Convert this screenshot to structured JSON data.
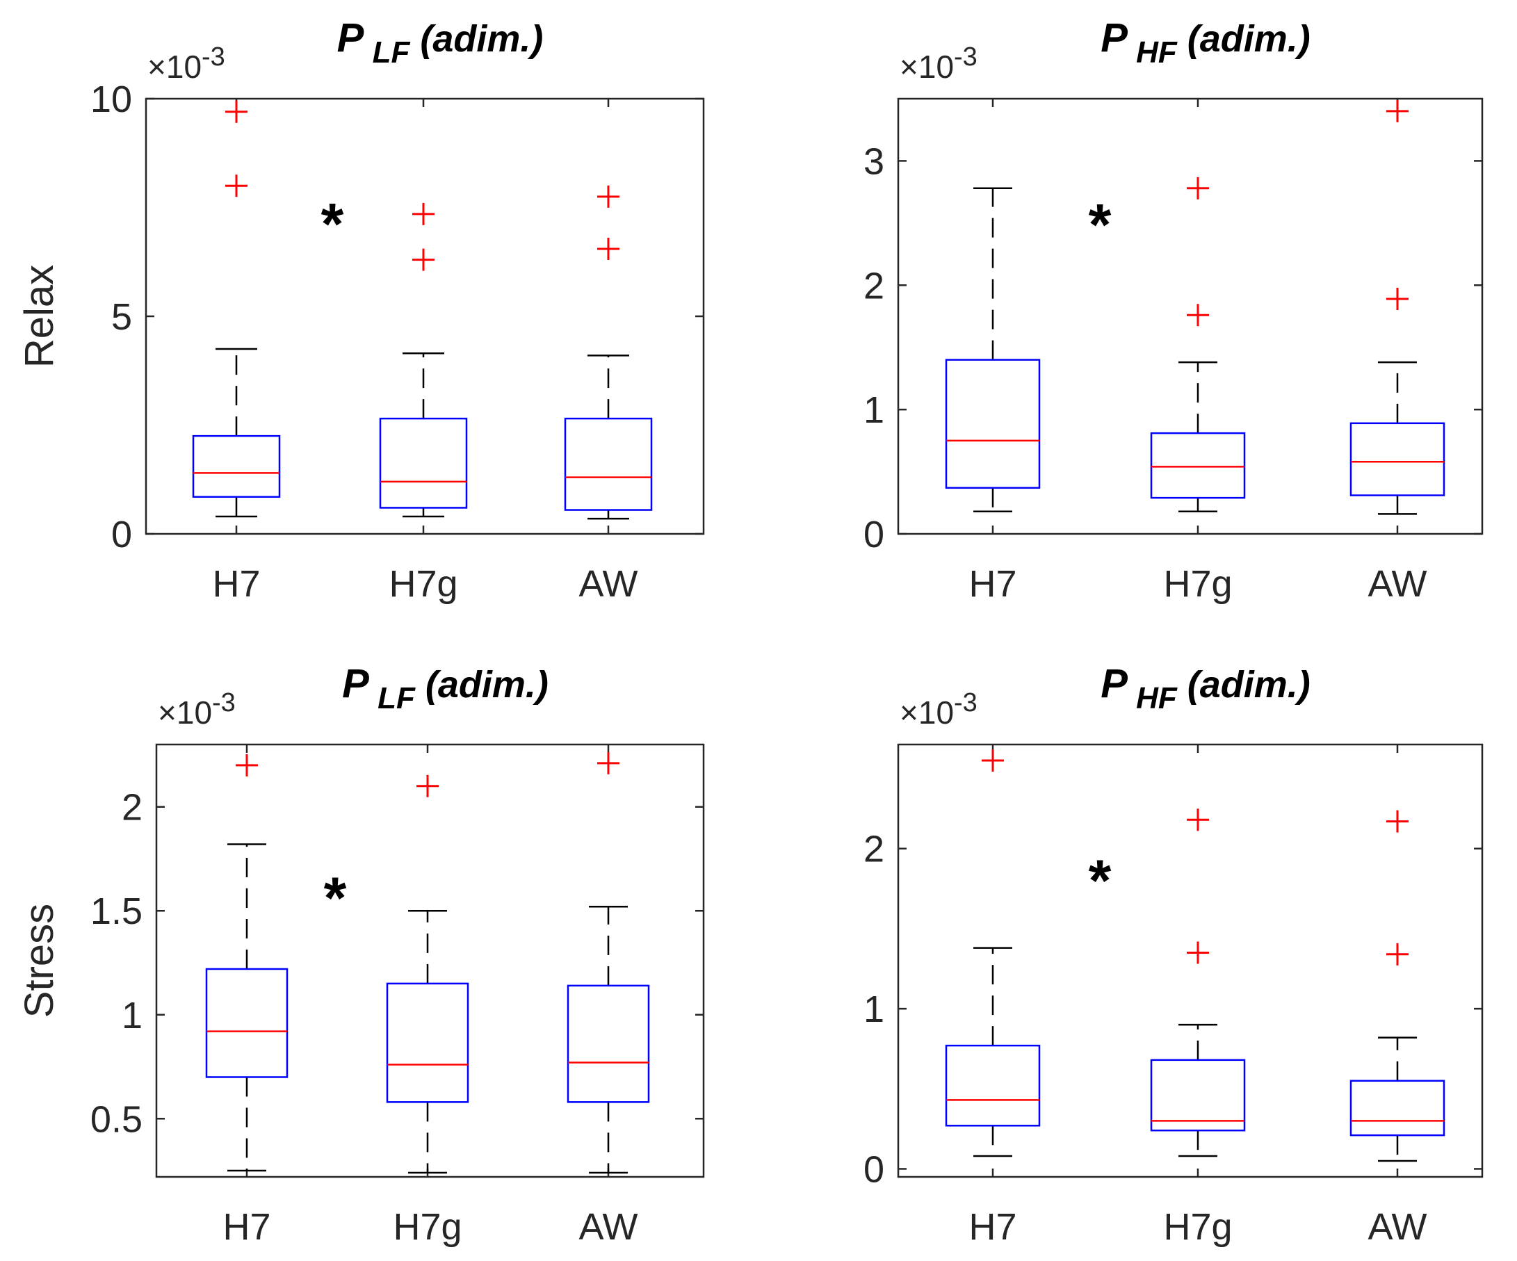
{
  "colors": {
    "box": "#0000ff",
    "median": "#ff0000",
    "outlier": "#ff0000",
    "whisker": "#000000",
    "axis": "#262626"
  },
  "chart_data": [
    {
      "type": "box",
      "title": {
        "symbol": "P",
        "subscript": "LF",
        "unit": "(adim.)"
      },
      "ylabel": "Relax",
      "exponent": {
        "times": "×",
        "base": "10",
        "power": "-3"
      },
      "categories": [
        "H7",
        "H7g",
        "AW"
      ],
      "ylim": [
        0,
        10
      ],
      "yticks": [
        0,
        5,
        10
      ],
      "ytick_labels": [
        "0",
        "5",
        "10"
      ],
      "significance_marker": "*",
      "significance_value": 7.3,
      "boxes": [
        {
          "whisker_low": 0.4,
          "q1": 0.85,
          "median": 1.4,
          "q3": 2.25,
          "whisker_high": 4.25,
          "outliers": [
            8.0,
            9.7
          ]
        },
        {
          "whisker_low": 0.4,
          "q1": 0.6,
          "median": 1.2,
          "q3": 2.65,
          "whisker_high": 4.15,
          "outliers": [
            6.3,
            7.35
          ]
        },
        {
          "whisker_low": 0.35,
          "q1": 0.55,
          "median": 1.3,
          "q3": 2.65,
          "whisker_high": 4.1,
          "outliers": [
            6.55,
            7.75
          ]
        }
      ]
    },
    {
      "type": "box",
      "title": {
        "symbol": "P",
        "subscript": "HF",
        "unit": "(adim.)"
      },
      "ylabel": "",
      "exponent": {
        "times": "×",
        "base": "10",
        "power": "-3"
      },
      "categories": [
        "H7",
        "H7g",
        "AW"
      ],
      "ylim": [
        0,
        3.5
      ],
      "yticks": [
        0,
        1,
        2,
        3
      ],
      "ytick_labels": [
        "0",
        "1",
        "2",
        "3"
      ],
      "significance_marker": "*",
      "significance_value": 2.55,
      "boxes": [
        {
          "whisker_low": 0.18,
          "q1": 0.37,
          "median": 0.75,
          "q3": 1.4,
          "whisker_high": 2.78,
          "outliers": []
        },
        {
          "whisker_low": 0.18,
          "q1": 0.29,
          "median": 0.54,
          "q3": 0.81,
          "whisker_high": 1.38,
          "outliers": [
            1.76,
            2.78
          ]
        },
        {
          "whisker_low": 0.16,
          "q1": 0.31,
          "median": 0.58,
          "q3": 0.89,
          "whisker_high": 1.38,
          "outliers": [
            1.89,
            3.4
          ]
        }
      ]
    },
    {
      "type": "box",
      "title": {
        "symbol": "P",
        "subscript": "LF",
        "unit": "(adim.)"
      },
      "ylabel": "Stress",
      "exponent": {
        "times": "×",
        "base": "10",
        "power": "-3"
      },
      "categories": [
        "H7",
        "H7g",
        "AW"
      ],
      "ylim": [
        0.22,
        2.3
      ],
      "yticks": [
        0.5,
        1,
        1.5,
        2
      ],
      "ytick_labels": [
        "0.5",
        "1",
        "1.5",
        "2"
      ],
      "significance_marker": "*",
      "significance_value": 1.6,
      "boxes": [
        {
          "whisker_low": 0.25,
          "q1": 0.7,
          "median": 0.92,
          "q3": 1.22,
          "whisker_high": 1.82,
          "outliers": [
            2.2
          ]
        },
        {
          "whisker_low": 0.24,
          "q1": 0.58,
          "median": 0.76,
          "q3": 1.15,
          "whisker_high": 1.5,
          "outliers": [
            2.1
          ]
        },
        {
          "whisker_low": 0.24,
          "q1": 0.58,
          "median": 0.77,
          "q3": 1.14,
          "whisker_high": 1.52,
          "outliers": [
            2.21
          ]
        }
      ]
    },
    {
      "type": "box",
      "title": {
        "symbol": "P",
        "subscript": "HF",
        "unit": "(adim.)"
      },
      "ylabel": "",
      "exponent": {
        "times": "×",
        "base": "10",
        "power": "-3"
      },
      "categories": [
        "H7",
        "H7g",
        "AW"
      ],
      "ylim": [
        -0.05,
        2.65
      ],
      "yticks": [
        0,
        1,
        2
      ],
      "ytick_labels": [
        "0",
        "1",
        "2"
      ],
      "significance_marker": "*",
      "significance_value": 1.85,
      "boxes": [
        {
          "whisker_low": 0.08,
          "q1": 0.27,
          "median": 0.43,
          "q3": 0.77,
          "whisker_high": 1.38,
          "outliers": [
            2.55
          ]
        },
        {
          "whisker_low": 0.08,
          "q1": 0.24,
          "median": 0.3,
          "q3": 0.68,
          "whisker_high": 0.9,
          "outliers": [
            1.35,
            2.18
          ]
        },
        {
          "whisker_low": 0.05,
          "q1": 0.21,
          "median": 0.3,
          "q3": 0.55,
          "whisker_high": 0.82,
          "outliers": [
            1.34,
            2.17
          ]
        }
      ]
    }
  ]
}
